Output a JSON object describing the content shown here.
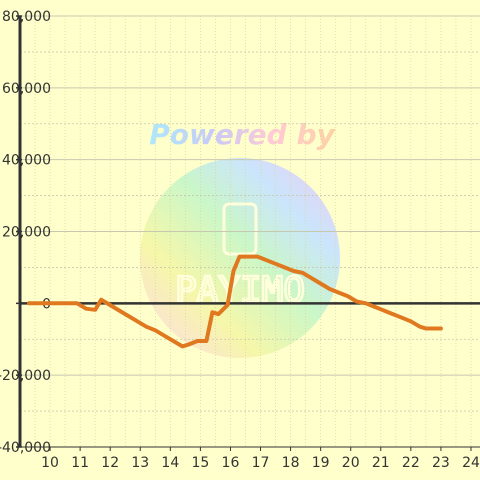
{
  "watermark": {
    "tagline": "Powered by",
    "brand": "PAYIMO"
  },
  "chart_data": {
    "type": "line",
    "title": "",
    "xlabel": "",
    "ylabel": "",
    "xlim": [
      9,
      24.3
    ],
    "ylim": [
      -40000,
      80000
    ],
    "x_ticks": [
      "10",
      "11",
      "12",
      "13",
      "14",
      "15",
      "16",
      "17",
      "18",
      "19",
      "20",
      "21",
      "22",
      "23",
      "24"
    ],
    "y_ticks": [
      "80,000",
      "60,000",
      "40,000",
      "20,000",
      "0",
      "-20,000",
      "-40,000"
    ],
    "y_tick_values": [
      80000,
      60000,
      40000,
      20000,
      0,
      -20000,
      -40000
    ],
    "grid": true,
    "colors": {
      "line": "#e07820",
      "background": "#ffffcc",
      "grid": "#c8c8b0",
      "axis": "#333333"
    },
    "series": [
      {
        "x": [
          9.3,
          10.9,
          11.2,
          11.5,
          11.7,
          12.0,
          12.3,
          12.6,
          12.9,
          13.2,
          13.5,
          13.8,
          14.1,
          14.4,
          14.6,
          14.9,
          15.2,
          15.4,
          15.6,
          15.9,
          16.1,
          16.3,
          16.6,
          16.9,
          17.2,
          17.5,
          17.8,
          18.1,
          18.4,
          18.7,
          19.0,
          19.3,
          19.6,
          19.9,
          20.2,
          20.5,
          20.8,
          21.1,
          21.4,
          21.7,
          22.0,
          22.3,
          22.5,
          22.8,
          23.0
        ],
        "y": [
          0,
          0,
          -1500,
          -1800,
          1000,
          -500,
          -2000,
          -3500,
          -5000,
          -6500,
          -7500,
          -9000,
          -10500,
          -12000,
          -11500,
          -10500,
          -10500,
          -2500,
          -3000,
          -500,
          9000,
          13000,
          13000,
          13000,
          12000,
          11000,
          10000,
          9000,
          8500,
          7000,
          5500,
          4000,
          3000,
          2000,
          500,
          0,
          -1000,
          -2000,
          -3000,
          -4000,
          -5000,
          -6500,
          -7000,
          -7000,
          -7000
        ]
      }
    ]
  }
}
